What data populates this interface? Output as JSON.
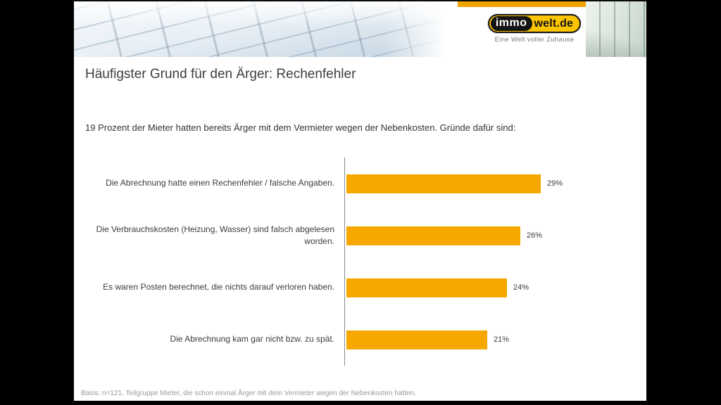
{
  "slide": {
    "logo": {
      "brand_left": "immo",
      "brand_right": "welt.de",
      "tagline": "Eine Welt voller Zuhause",
      "yellow": "#fdc400",
      "black": "#141414"
    },
    "title": "Häufigster Grund für den Ärger: Rechenfehler",
    "subtitle": "19 Prozent der Mieter hatten bereits Ärger mit dem Vermieter wegen der Nebenkosten. Gründe dafür sind:",
    "footer": "Basis: n=121, Teilgruppe Mieter, die schon einmal Ärger mit dem Vermieter wegen der Nebenkosten hatten."
  },
  "chart_data": {
    "type": "bar",
    "orientation": "horizontal",
    "categories": [
      "Die Abrechnung hatte einen Rechenfehler / falsche Angaben.",
      "Die Verbrauchskosten (Heizung, Wasser) sind falsch abgelesen worden.",
      "Es waren Posten berechnet, die nichts darauf verloren haben.",
      "Die Abrechnung kam gar nicht bzw. zu spät."
    ],
    "values": [
      29,
      26,
      24,
      21
    ],
    "value_labels": [
      "29%",
      "26%",
      "24%",
      "21%"
    ],
    "xlim": [
      0,
      31
    ],
    "bar_color": "#f6a700",
    "grid": false,
    "legend": false,
    "title": "Häufigster Grund für den Ärger: Rechenfehler",
    "xlabel": "",
    "ylabel": ""
  }
}
